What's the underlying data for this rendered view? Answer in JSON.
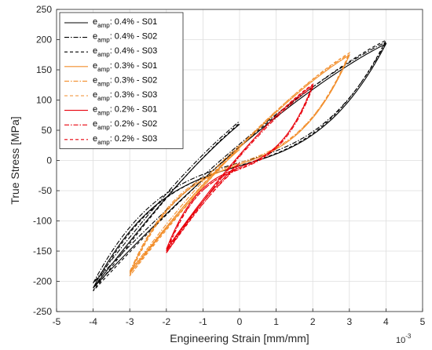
{
  "chart_data": {
    "type": "line",
    "title": "",
    "xlabel": "Engineering Strain [mm/mm]",
    "ylabel": "True Stress [MPa]",
    "x_exponent_label": "10",
    "x_exponent_power": "-3",
    "xlim": [
      -5,
      5
    ],
    "ylim": [
      -250,
      250
    ],
    "xticks": [
      -5,
      -4,
      -3,
      -2,
      -1,
      0,
      1,
      2,
      3,
      4,
      5
    ],
    "yticks": [
      -250,
      -200,
      -150,
      -100,
      -50,
      0,
      50,
      100,
      150,
      200,
      250
    ],
    "grid": true,
    "legend_position": "top-left",
    "series": [
      {
        "name_prefix": "e",
        "name_sub": "amp",
        "name_suffix": ": 0.4% - S01",
        "color": "#000000",
        "dash": "",
        "amp": 0.004,
        "x_loop": [
          -4,
          4
        ],
        "y_peak": 193,
        "y_valley": -211,
        "x_end": 0,
        "y_end": 60
      },
      {
        "name_prefix": "e",
        "name_sub": "amp",
        "name_suffix": ": 0.4% - S02",
        "color": "#000000",
        "dash": "6,2,1.5,2",
        "amp": 0.004,
        "x_loop": [
          -4,
          4
        ],
        "y_peak": 196,
        "y_valley": -203,
        "x_end": 0,
        "y_end": 65
      },
      {
        "name_prefix": "e",
        "name_sub": "amp",
        "name_suffix": ": 0.4% - S03",
        "color": "#000000",
        "dash": "4,3",
        "amp": 0.004,
        "x_loop": [
          -4,
          4
        ],
        "y_peak": 199,
        "y_valley": -216,
        "x_end": 0,
        "y_end": 62
      },
      {
        "name_prefix": "e",
        "name_sub": "amp",
        "name_suffix": ": 0.3% - S01",
        "color": "#f28e2b",
        "dash": "",
        "amp": 0.003,
        "x_loop": [
          -3,
          3
        ],
        "y_peak": 174,
        "y_valley": -187,
        "x_end": 0,
        "y_end": 18
      },
      {
        "name_prefix": "e",
        "name_sub": "amp",
        "name_suffix": ": 0.3% - S02",
        "color": "#f28e2b",
        "dash": "6,2,1.5,2",
        "amp": 0.003,
        "x_loop": [
          -3,
          3
        ],
        "y_peak": 176,
        "y_valley": -184,
        "x_end": 0,
        "y_end": 25
      },
      {
        "name_prefix": "e",
        "name_sub": "amp",
        "name_suffix": ": 0.3% - S03",
        "color": "#f28e2b",
        "dash": "4,3",
        "amp": 0.003,
        "x_loop": [
          -3,
          3
        ],
        "y_peak": 178,
        "y_valley": -191,
        "x_end": 0,
        "y_end": 21
      },
      {
        "name_prefix": "e",
        "name_sub": "amp",
        "name_suffix": ": 0.2% - S01",
        "color": "#e8000b",
        "dash": "",
        "amp": 0.002,
        "x_loop": [
          -2,
          2
        ],
        "y_peak": 124,
        "y_valley": -147,
        "x_end": 0,
        "y_end": -4
      },
      {
        "name_prefix": "e",
        "name_sub": "amp",
        "name_suffix": ": 0.2% - S02",
        "color": "#e8000b",
        "dash": "6,2,1.5,2",
        "amp": 0.002,
        "x_loop": [
          -2,
          2
        ],
        "y_peak": 121,
        "y_valley": -150,
        "x_end": 0,
        "y_end": -8
      },
      {
        "name_prefix": "e",
        "name_sub": "amp",
        "name_suffix": ": 0.2% - S03",
        "color": "#e8000b",
        "dash": "4,3",
        "amp": 0.002,
        "x_loop": [
          -2,
          2
        ],
        "y_peak": 126,
        "y_valley": -153,
        "x_end": 0,
        "y_end": -6
      }
    ]
  }
}
